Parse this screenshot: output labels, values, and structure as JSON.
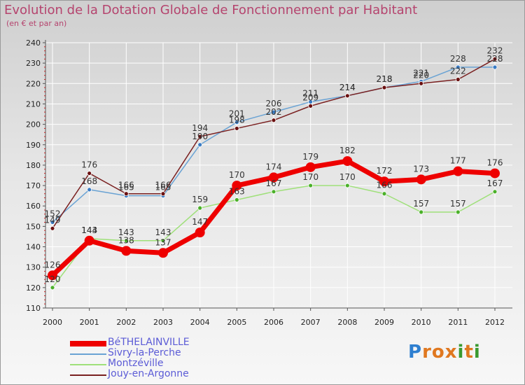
{
  "header": {
    "title": "Evolution de la Dotation Globale de Fonctionnement par Habitant",
    "subtitle": "(en € et par an)"
  },
  "logo": {
    "text": "Proxiti"
  },
  "colors": {
    "series": [
      "#ee0000",
      "#6aa3d4",
      "#9fe07a",
      "#7a2020"
    ],
    "markers": [
      "#ee0000",
      "#3a7cc4",
      "#4bb02a",
      "#6a1010"
    ],
    "tick_text": "#222222",
    "axis_marks": "#cc2222",
    "grid": "#ffffff",
    "title": "#b5446e",
    "legend_text": "#5b5bd6"
  },
  "chart_data": {
    "type": "line",
    "title": "Evolution de la Dotation Globale de Fonctionnement par Habitant",
    "subtitle": "(en € et par an)",
    "xlabel": "",
    "ylabel": "",
    "x": [
      2000,
      2001,
      2002,
      2003,
      2004,
      2005,
      2006,
      2007,
      2008,
      2009,
      2010,
      2011,
      2012
    ],
    "ylim": [
      110,
      240
    ],
    "yticks": [
      110,
      120,
      130,
      140,
      150,
      160,
      170,
      180,
      190,
      200,
      210,
      220,
      230,
      240
    ],
    "grid": true,
    "legend_position": "bottom-left",
    "series": [
      {
        "name": "BéTHELAINVILLE",
        "values": [
          126,
          143,
          138,
          137,
          147,
          170,
          174,
          179,
          182,
          172,
          173,
          177,
          176
        ]
      },
      {
        "name": "Sivry-la-Perche",
        "values": [
          152,
          168,
          165,
          165,
          190,
          201,
          206,
          211,
          214,
          218,
          221,
          228,
          228
        ]
      },
      {
        "name": "Montzéville",
        "values": [
          120,
          144,
          143,
          143,
          159,
          163,
          167,
          170,
          170,
          166,
          157,
          157,
          167
        ]
      },
      {
        "name": "Jouy-en-Argonne",
        "values": [
          149,
          176,
          166,
          166,
          194,
          198,
          202,
          209,
          214,
          218,
          220,
          222,
          232
        ]
      }
    ]
  }
}
